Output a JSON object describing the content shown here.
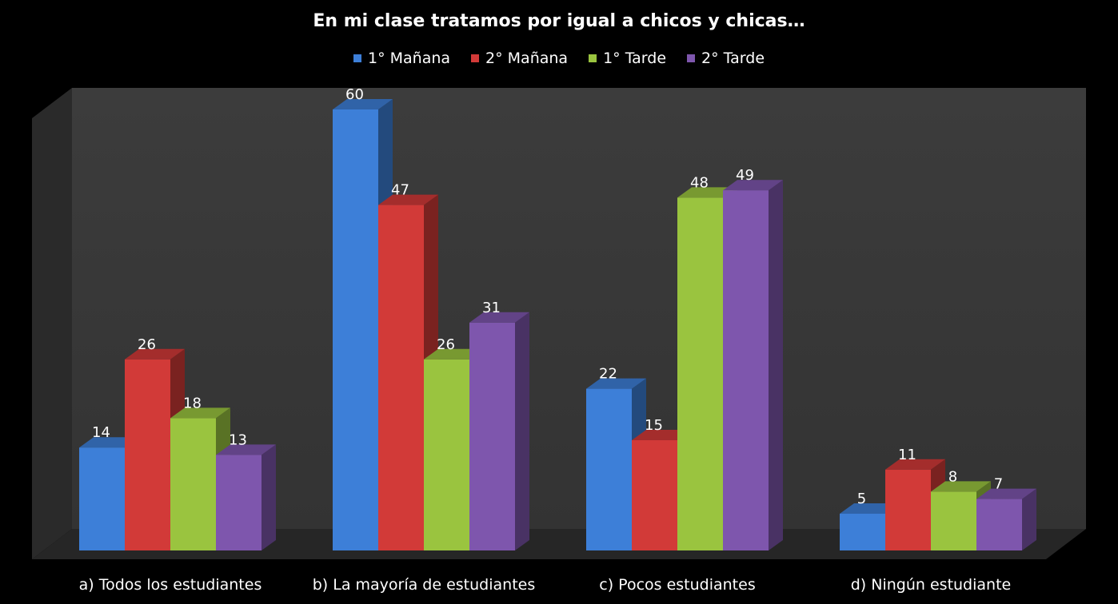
{
  "chart_data": {
    "type": "bar",
    "title": "En mi clase tratamos por igual a chicos y chicas…",
    "categories": [
      "a) Todos los estudiantes",
      "b) La mayoría de estudiantes",
      "c) Pocos estudiantes",
      "d) Ningún estudiante"
    ],
    "series": [
      {
        "name": "1° Mañana",
        "color": "#3d7fd8",
        "values": [
          14,
          60,
          22,
          5
        ]
      },
      {
        "name": "2° Mañana",
        "color": "#d23a38",
        "values": [
          26,
          47,
          15,
          11
        ]
      },
      {
        "name": "1° Tarde",
        "color": "#9ac43f",
        "values": [
          18,
          26,
          48,
          8
        ]
      },
      {
        "name": "2° Tarde",
        "color": "#7e56ad",
        "values": [
          13,
          31,
          49,
          7
        ]
      }
    ],
    "ylim": [
      0,
      60
    ],
    "legend_position": "top",
    "grid": false,
    "style": "3d-clustered-column"
  }
}
